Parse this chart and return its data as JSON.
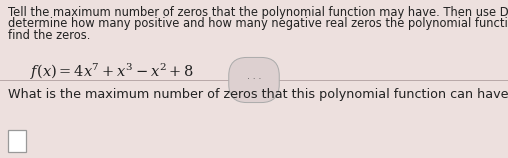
{
  "bg_color": "#ede0de",
  "top_section_bg": "#e8dada",
  "instruction_text_line1": "Tell the maximum number of zeros that the polynomial function may have. Then use Descartes’ Rule of Signs to",
  "instruction_text_line2": "determine how many positive and how many negative real zeros the polynomial function may have. Do not attempt to",
  "instruction_text_line3": "find the zeros.",
  "function_text": "$f(x)=4x^{7}+x^{3}-x^{2}+8$",
  "divider_color": "#b8a8a8",
  "dots_label": "· · ·",
  "question_text": "What is the maximum number of zeros that this polynomial function can have?",
  "text_color": "#222222",
  "gray_text_color": "#555555",
  "font_size_instruction": 8.3,
  "font_size_function": 10.5,
  "font_size_question": 9.2
}
